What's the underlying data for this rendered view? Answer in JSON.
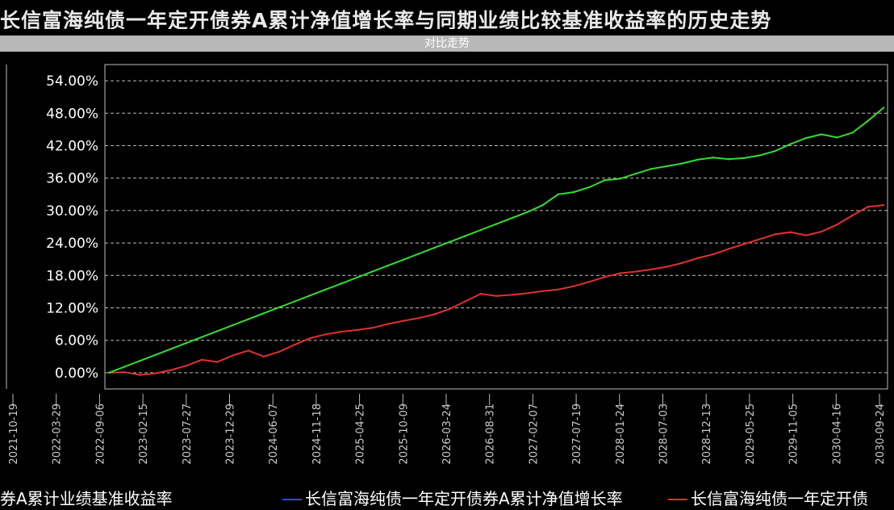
{
  "header": {
    "title": "长信富海纯债一年定开债券A累计净值增长率与同期业绩比较基准收益率的历史走势",
    "subtitle": "对比走势"
  },
  "colors": {
    "background": "#000000",
    "fund_line": "#e03030",
    "benchmark_line": "#33dd33",
    "grid": "#bbbbbb",
    "text": "#ffffff"
  },
  "chart_data": {
    "type": "line",
    "ylim": [
      -3,
      57
    ],
    "yticks": [
      "0.00%",
      "6.00%",
      "12.00%",
      "18.00%",
      "24.00%",
      "30.00%",
      "36.00%",
      "42.00%",
      "48.00%",
      "54.00%"
    ],
    "ytick_values": [
      0,
      6,
      12,
      18,
      24,
      30,
      36,
      42,
      48,
      54
    ],
    "xtick_labels": [
      "2021-10-19",
      "2022-03-29",
      "2022-09-06",
      "2023-02-15",
      "2023-07-27",
      "2023-12-29",
      "2024-06-07",
      "2024-11-18",
      "2025-04-25",
      "2025-10-09",
      "2026-03-24",
      "2026-08-31",
      "2027-02-07",
      "2027-07-19",
      "2028-01-24",
      "2028-07-03",
      "2028-12-13",
      "2029-05-25",
      "2029-11-05",
      "2030-04-16",
      "2030-09-24"
    ],
    "x": [
      0,
      20,
      40,
      60,
      80,
      100,
      120,
      140,
      160,
      180,
      200,
      220,
      240,
      260,
      280,
      300,
      320,
      340,
      360,
      380,
      400,
      420,
      440,
      460,
      480,
      500,
      520,
      540,
      560,
      580,
      600,
      620,
      640,
      660,
      680,
      700,
      720,
      740,
      760,
      780,
      800,
      820,
      840,
      860,
      880,
      900,
      920,
      940,
      960,
      980,
      1000
    ],
    "series": [
      {
        "name": "长信富海纯债一年定开债券A累计净值增长率",
        "color": "#e03030",
        "values": [
          0,
          0.1,
          -0.4,
          -0.1,
          0.5,
          1.3,
          2.4,
          2.0,
          3.2,
          4.1,
          3.0,
          3.9,
          5.2,
          6.4,
          7.1,
          7.6,
          7.9,
          8.3,
          9.0,
          9.6,
          10.1,
          10.8,
          11.8,
          13.2,
          14.6,
          14.2,
          14.4,
          14.7,
          15.1,
          15.4,
          16.0,
          16.8,
          17.7,
          18.4,
          18.7,
          19.1,
          19.6,
          20.3,
          21.2,
          21.9,
          22.9,
          23.8,
          24.7,
          25.6,
          26.0,
          25.4,
          26.1,
          27.4,
          29.1,
          30.7,
          31.0
        ]
      },
      {
        "name": "长信富海纯债一年定开债券A业绩比较基准收益率",
        "color": "#33dd33",
        "values": [
          0,
          1.1,
          2.2,
          3.3,
          4.4,
          5.5,
          6.6,
          7.7,
          8.8,
          9.9,
          11.0,
          12.1,
          13.2,
          14.3,
          15.4,
          16.5,
          17.6,
          18.7,
          19.8,
          20.9,
          22.0,
          23.1,
          24.2,
          25.3,
          26.4,
          27.5,
          28.6,
          29.7,
          31.0,
          33.0,
          33.4,
          34.3,
          35.6,
          35.9,
          36.8,
          37.7,
          38.2,
          38.7,
          39.4,
          39.8,
          39.5,
          39.7,
          40.2,
          41.0,
          42.3,
          43.4,
          44.1,
          43.5,
          44.4,
          46.6,
          49.0
        ]
      }
    ]
  },
  "legend": {
    "left_text": "券A累计业绩基准收益率",
    "mid_text": "长信富海纯债一年定开债券A累计净值增长率",
    "right_text": "长信富海纯债一年定开债"
  }
}
